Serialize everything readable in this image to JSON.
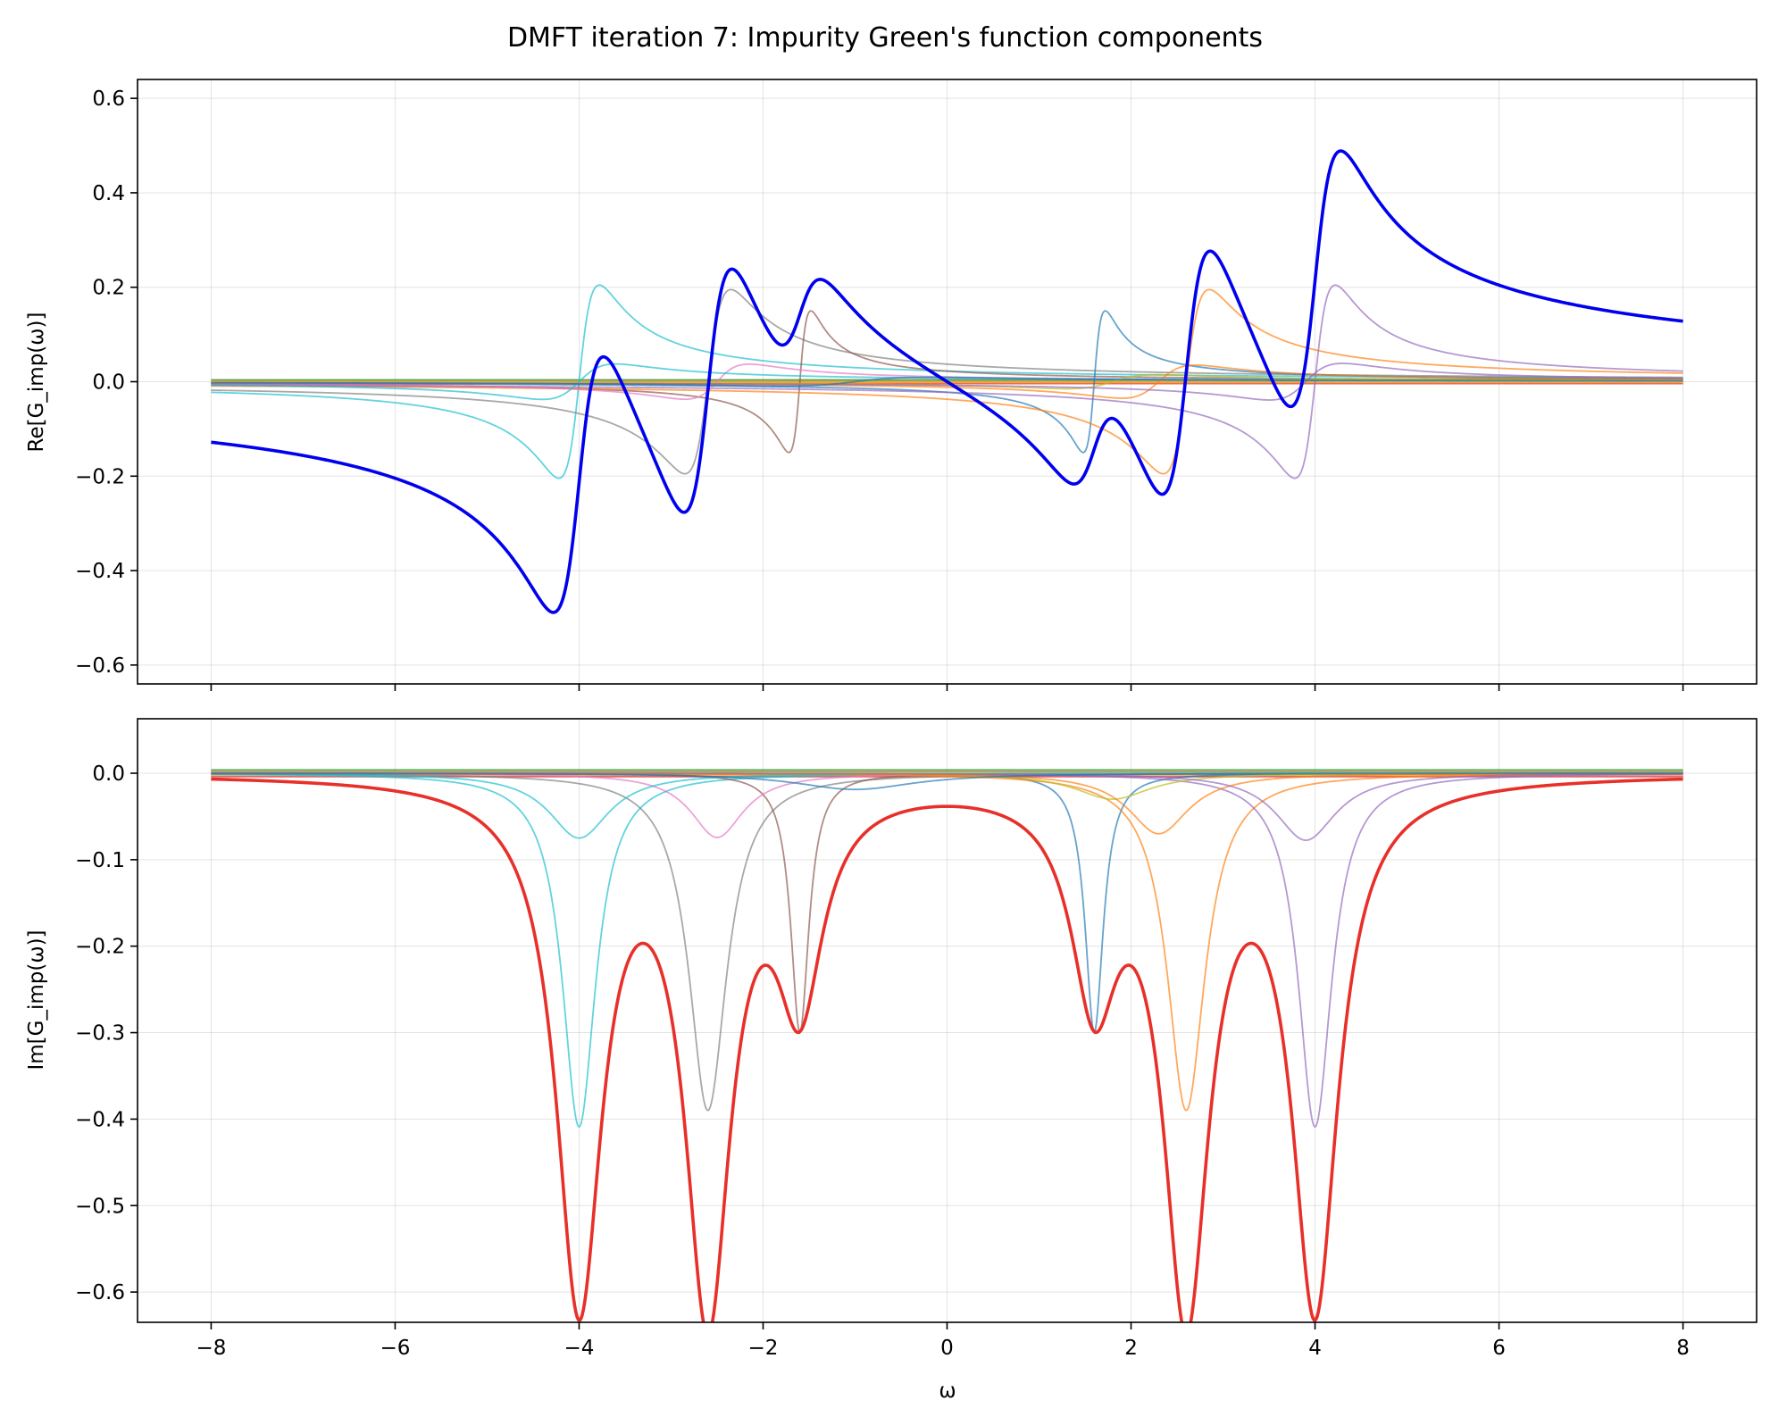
{
  "chart_data": {
    "type": "line",
    "title": "DMFT iteration 7: Impurity Green's function components",
    "panels": [
      {
        "id": "real",
        "ylabel": "Re[G_imp(ω)]",
        "xlabel": "",
        "xlim": [
          -8.8,
          8.8
        ],
        "ylim": [
          -0.64,
          0.64
        ],
        "xticks": [
          -8,
          -6,
          -4,
          -2,
          0,
          2,
          4,
          6,
          8
        ],
        "yticks": [
          -0.6,
          -0.4,
          -0.2,
          0.0,
          0.2,
          0.4,
          0.6
        ],
        "show_xtick_labels": false,
        "grid": true
      },
      {
        "id": "imag",
        "ylabel": "Im[G_imp(ω)]",
        "xlabel": "ω",
        "xlim": [
          -8.8,
          8.8
        ],
        "ylim": [
          -0.635,
          0.063
        ],
        "xticks": [
          -8,
          -6,
          -4,
          -2,
          0,
          2,
          4,
          6,
          8
        ],
        "yticks": [
          -0.6,
          -0.5,
          -0.4,
          -0.3,
          -0.2,
          -0.1,
          0.0
        ],
        "show_xtick_labels": true,
        "grid": true
      }
    ],
    "x_range": [
      -8,
      8
    ],
    "components": [
      {
        "pole": -4.0,
        "gamma": 0.22,
        "weight": 0.09,
        "color": "#17becf"
      },
      {
        "pole": -2.6,
        "gamma": 0.25,
        "weight": 0.0975,
        "color": "#7f7f7f"
      },
      {
        "pole": -1.6,
        "gamma": 0.12,
        "weight": 0.036,
        "color": "#8c564b"
      },
      {
        "pole": 1.6,
        "gamma": 0.12,
        "weight": 0.036,
        "color": "#1f77b4"
      },
      {
        "pole": 2.6,
        "gamma": 0.25,
        "weight": 0.0975,
        "color": "#ff7f0e"
      },
      {
        "pole": 4.0,
        "gamma": 0.22,
        "weight": 0.09,
        "color": "#9467bd"
      },
      {
        "pole": -2.5,
        "gamma": 0.35,
        "weight": 0.026,
        "color": "#e377c2"
      },
      {
        "pole": -4.0,
        "gamma": 0.4,
        "weight": 0.03,
        "color": "#17becf"
      },
      {
        "pole": 1.8,
        "gamma": 0.5,
        "weight": 0.015,
        "color": "#bcbd22"
      },
      {
        "pole": 2.3,
        "gamma": 0.4,
        "weight": 0.028,
        "color": "#ff7f0e"
      },
      {
        "pole": 3.9,
        "gamma": 0.4,
        "weight": 0.031,
        "color": "#9467bd"
      },
      {
        "pole": -1.0,
        "gamma": 0.8,
        "weight": 0.015,
        "color": "#1f77b4"
      }
    ],
    "total": {
      "poles": [
        -4.0,
        -2.6,
        -1.6,
        1.6,
        2.6,
        4.0
      ],
      "gamma": 0.3,
      "weights": [
        0.18,
        0.18,
        0.07,
        0.07,
        0.18,
        0.18
      ],
      "re_color": "#0000ee",
      "im_color": "#e8302a"
    },
    "offset_lines": [
      {
        "value": 0.004,
        "color": "#2ca02c"
      },
      {
        "value": -0.004,
        "color": "#d62728"
      },
      {
        "value": 0.002,
        "color": "#8c564b"
      },
      {
        "value": -0.002,
        "color": "#ff7f0e"
      },
      {
        "value": 0.001,
        "color": "#bcbd22"
      }
    ]
  }
}
